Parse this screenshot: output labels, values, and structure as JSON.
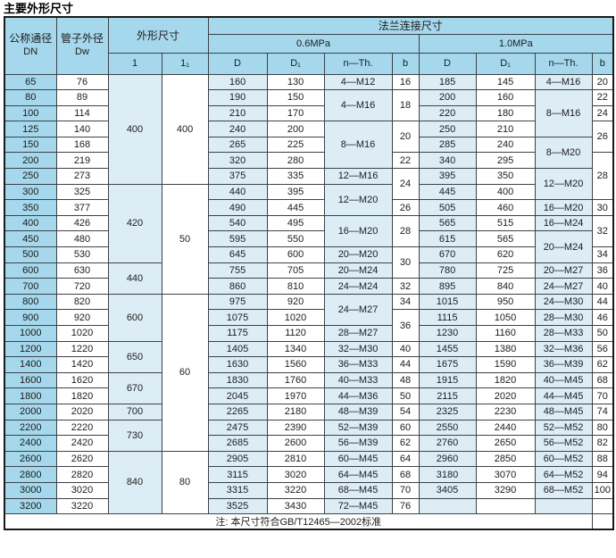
{
  "title": "主要外形尺寸",
  "note": "注: 本尺寸符合GB/T12465—2002标准",
  "colors": {
    "header_blue": "#a5d8ec",
    "column_tint": "#dcedf6",
    "column_white": "#ffffff",
    "grid_border": "#3d4247"
  },
  "table": {
    "headers": {
      "dn_line1": "公称通径",
      "dn_line2": "DN",
      "dw_line1": "管子外径",
      "dw_line2": "Dw",
      "outline": "外形尺寸",
      "flange": "法兰连接尺寸",
      "p06": "0.6MPa",
      "p10": "1.0MPa",
      "l": "1",
      "l1": "1₁",
      "d": "D",
      "d1": "D₁",
      "nth": "n—Th.",
      "b": "b"
    },
    "column_keys": [
      "dn",
      "dw",
      "l",
      "l1",
      "d-06",
      "d1-06",
      "nth-06",
      "b-06",
      "d-10",
      "d1-10",
      "nth-10",
      "b-10"
    ],
    "rows": [
      [
        "65",
        "76",
        {
          "v": "400",
          "rs": 7
        },
        {
          "v": "400",
          "rs": 7
        },
        "160",
        "130",
        "4—M12",
        "16",
        "185",
        "145",
        "4—M16",
        "20"
      ],
      [
        "80",
        "89",
        null,
        null,
        "190",
        "150",
        {
          "v": "4—M16",
          "rs": 2
        },
        {
          "v": "18",
          "rs": 2
        },
        "200",
        "160",
        {
          "v": "8—M16",
          "rs": 3
        },
        "22"
      ],
      [
        "100",
        "114",
        null,
        null,
        "210",
        "170",
        null,
        null,
        "220",
        "180",
        null,
        "24"
      ],
      [
        "125",
        "140",
        null,
        null,
        "240",
        "200",
        {
          "v": "8—M16",
          "rs": 3
        },
        {
          "v": "20",
          "rs": 2
        },
        "250",
        "210",
        null,
        {
          "v": "26",
          "rs": 2
        }
      ],
      [
        "150",
        "168",
        null,
        null,
        "265",
        "225",
        null,
        null,
        "285",
        "240",
        {
          "v": "8—M20",
          "rs": 2
        },
        null
      ],
      [
        "200",
        "219",
        null,
        null,
        "320",
        "280",
        null,
        "22",
        "340",
        "295",
        null,
        {
          "v": "28",
          "rs": 3
        }
      ],
      [
        "250",
        "273",
        null,
        null,
        "375",
        "335",
        "12—M16",
        {
          "v": "24",
          "rs": 2
        },
        "395",
        "350",
        {
          "v": "12—M20",
          "rs": 2
        },
        null
      ],
      [
        "300",
        "325",
        {
          "v": "420",
          "rs": 5
        },
        {
          "v": "50",
          "rs": 7
        },
        "440",
        "395",
        {
          "v": "12—M20",
          "rs": 2
        },
        null,
        "445",
        "400",
        null,
        null
      ],
      [
        "350",
        "377",
        null,
        null,
        "490",
        "445",
        null,
        "26",
        "505",
        "460",
        "16—M20",
        "30"
      ],
      [
        "400",
        "426",
        null,
        null,
        "540",
        "495",
        {
          "v": "16—M20",
          "rs": 2
        },
        {
          "v": "28",
          "rs": 2
        },
        "565",
        "515",
        "16—M24",
        {
          "v": "32",
          "rs": 2
        }
      ],
      [
        "450",
        "480",
        null,
        null,
        "595",
        "550",
        null,
        null,
        "615",
        "565",
        {
          "v": "20—M24",
          "rs": 2
        },
        null
      ],
      [
        "500",
        "530",
        null,
        null,
        "645",
        "600",
        "20—M20",
        {
          "v": "30",
          "rs": 2
        },
        "670",
        "620",
        null,
        "34"
      ],
      [
        "600",
        "630",
        {
          "v": "440",
          "rs": 2
        },
        null,
        "755",
        "705",
        "20—M24",
        null,
        "780",
        "725",
        "20—M27",
        "36"
      ],
      [
        "700",
        "720",
        null,
        null,
        "860",
        "810",
        "24—M24",
        "32",
        "895",
        "840",
        "24—M27",
        "40"
      ],
      [
        "800",
        "820",
        {
          "v": "600",
          "rs": 3
        },
        {
          "v": "60",
          "rs": 10
        },
        "975",
        "920",
        {
          "v": "24—M27",
          "rs": 2
        },
        "34",
        "1015",
        "950",
        "24—M30",
        "44"
      ],
      [
        "900",
        "920",
        null,
        null,
        "1075",
        "1020",
        null,
        {
          "v": "36",
          "rs": 2
        },
        "1115",
        "1050",
        "28—M30",
        "46"
      ],
      [
        "1000",
        "1020",
        null,
        null,
        "1175",
        "1120",
        "28—M27",
        null,
        "1230",
        "1160",
        "28—M33",
        "50"
      ],
      [
        "1200",
        "1220",
        {
          "v": "650",
          "rs": 2
        },
        null,
        "1405",
        "1340",
        "32—M30",
        "40",
        "1455",
        "1380",
        "32—M36",
        "56"
      ],
      [
        "1400",
        "1420",
        null,
        null,
        "1630",
        "1560",
        "36—M33",
        "44",
        "1675",
        "1590",
        "36—M39",
        "62"
      ],
      [
        "1600",
        "1620",
        {
          "v": "670",
          "rs": 2
        },
        null,
        "1830",
        "1760",
        "40—M33",
        "48",
        "1915",
        "1820",
        "40—M45",
        "68"
      ],
      [
        "1800",
        "1820",
        null,
        null,
        "2045",
        "1970",
        "44—M36",
        "50",
        "2115",
        "2020",
        "44—M45",
        "70"
      ],
      [
        "2000",
        "2020",
        "700",
        null,
        "2265",
        "2180",
        "48—M39",
        "54",
        "2325",
        "2230",
        "48—M45",
        "74"
      ],
      [
        "2200",
        "2220",
        {
          "v": "730",
          "rs": 2
        },
        null,
        "2475",
        "2390",
        "52—M39",
        "60",
        "2550",
        "2440",
        "52—M52",
        "80"
      ],
      [
        "2400",
        "2420",
        null,
        null,
        "2685",
        "2600",
        "56—M39",
        "62",
        "2760",
        "2650",
        "56—M52",
        "82"
      ],
      [
        "2600",
        "2620",
        {
          "v": "840",
          "rs": 4
        },
        {
          "v": "80",
          "rs": 4
        },
        "2905",
        "2810",
        "60—M45",
        "64",
        "2960",
        "2850",
        "60—M52",
        "88"
      ],
      [
        "2800",
        "2820",
        null,
        null,
        "3115",
        "3020",
        "64—M45",
        "68",
        "3180",
        "3070",
        "64—M52",
        "94"
      ],
      [
        "3000",
        "3020",
        null,
        null,
        "3315",
        "3220",
        "68—M45",
        "70",
        "3405",
        "3290",
        "68—M52",
        "100"
      ],
      [
        "3200",
        "3220",
        null,
        null,
        "3525",
        "3430",
        "72—M45",
        "76",
        "",
        "",
        "",
        ""
      ]
    ]
  }
}
